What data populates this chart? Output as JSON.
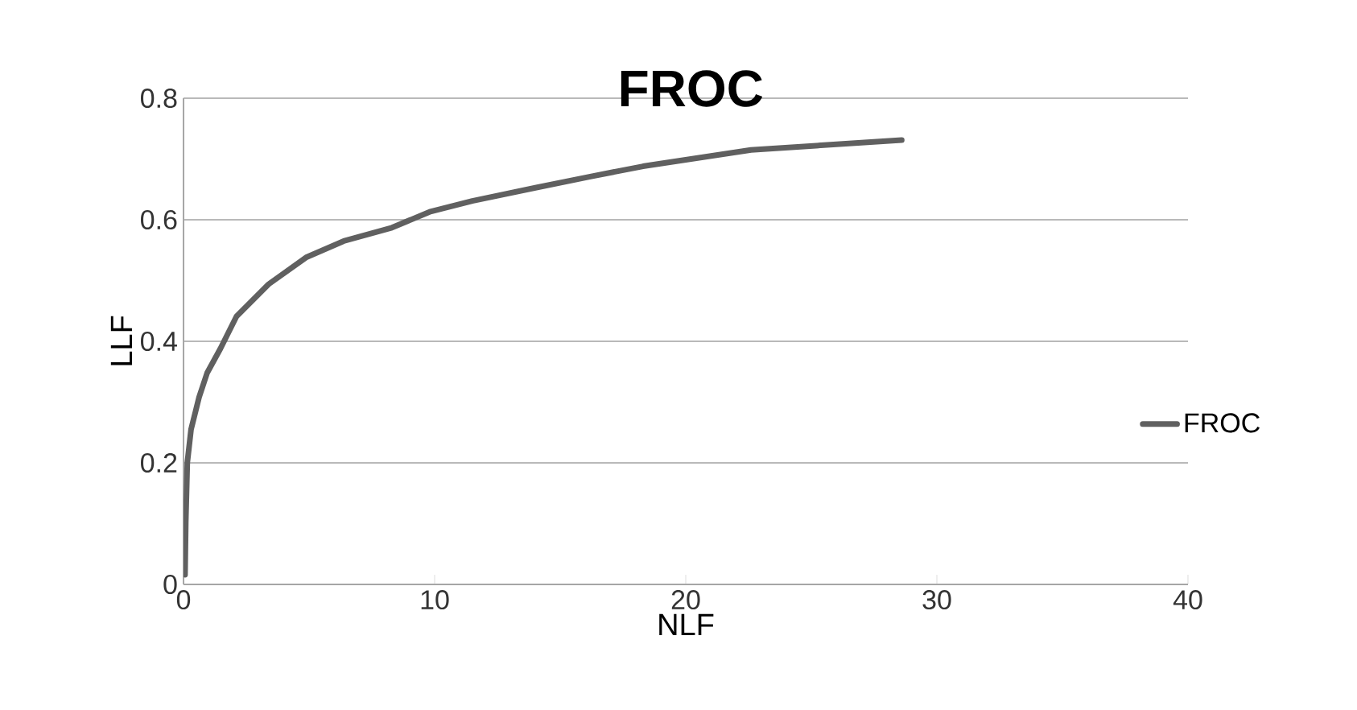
{
  "chart_data": {
    "type": "line",
    "title": "FROC",
    "xlabel": "NLF",
    "ylabel": "LLF",
    "xlim": [
      0,
      40
    ],
    "xticks": [
      0,
      10,
      20,
      30,
      40
    ],
    "ylim": [
      0,
      0.8
    ],
    "yticks": [
      0,
      0.2,
      0.4,
      0.6,
      0.8
    ],
    "grid": "y",
    "legend": "right",
    "marker": "none",
    "line_style": "solid",
    "series": [
      {
        "name": "FROC",
        "color": "#606060",
        "x": [
          0.06,
          0.09,
          0.15,
          0.3,
          0.62,
          0.94,
          1.47,
          2.11,
          3.39,
          4.88,
          6.38,
          8.3,
          9.8,
          11.5,
          14.05,
          16.2,
          18.3,
          22.6,
          28.6
        ],
        "values": [
          0.016,
          0.104,
          0.2,
          0.255,
          0.308,
          0.348,
          0.388,
          0.441,
          0.494,
          0.538,
          0.565,
          0.587,
          0.613,
          0.631,
          0.653,
          0.671,
          0.688,
          0.715,
          0.731
        ]
      }
    ]
  }
}
